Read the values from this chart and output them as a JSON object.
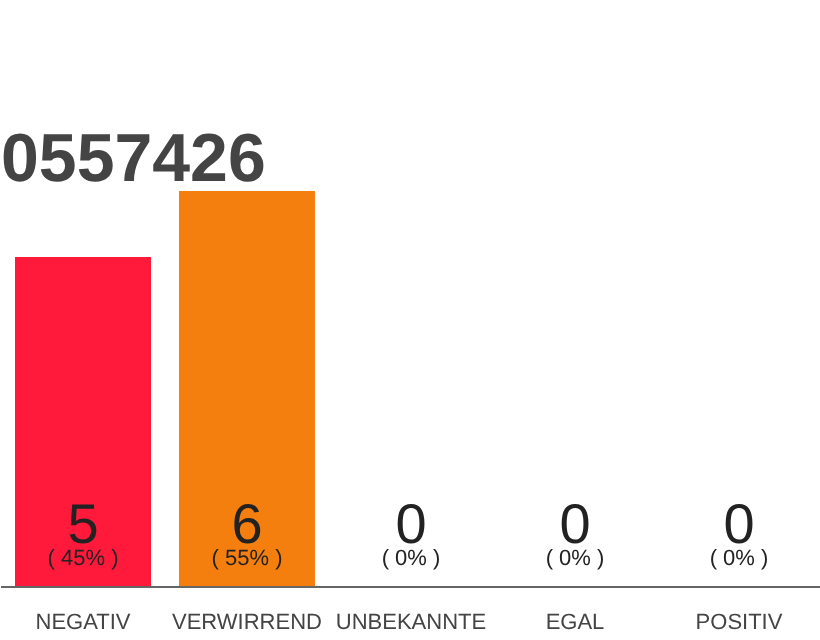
{
  "chart_data": {
    "type": "bar",
    "title": "0557426",
    "categories": [
      "NEGATIV",
      "VERWIRREND",
      "UNBEKANNTE",
      "EGAL",
      "POSITIV"
    ],
    "grid": false,
    "series": [
      {
        "colors": [
          "#ff1a3c",
          "#f47f0f",
          "#ff1a3c",
          "#ff1a3c",
          "#ff1a3c"
        ],
        "values": [
          5,
          6,
          0,
          0,
          0
        ],
        "value_labels": [
          "5",
          "6",
          "0",
          "0",
          "0"
        ]
      }
    ],
    "annotations": [
      {
        "text": "( 45% )",
        "x": "NEGATIV",
        "y": 0
      },
      {
        "text": "( 55% )",
        "x": "VERWIRREND",
        "y": 0
      },
      {
        "text": "( 0% )",
        "x": "UNBEKANNTE",
        "y": 0
      },
      {
        "text": "( 0% )",
        "x": "EGAL",
        "y": 0
      },
      {
        "text": "( 0% )",
        "x": "POSITIV",
        "y": 0
      }
    ]
  }
}
